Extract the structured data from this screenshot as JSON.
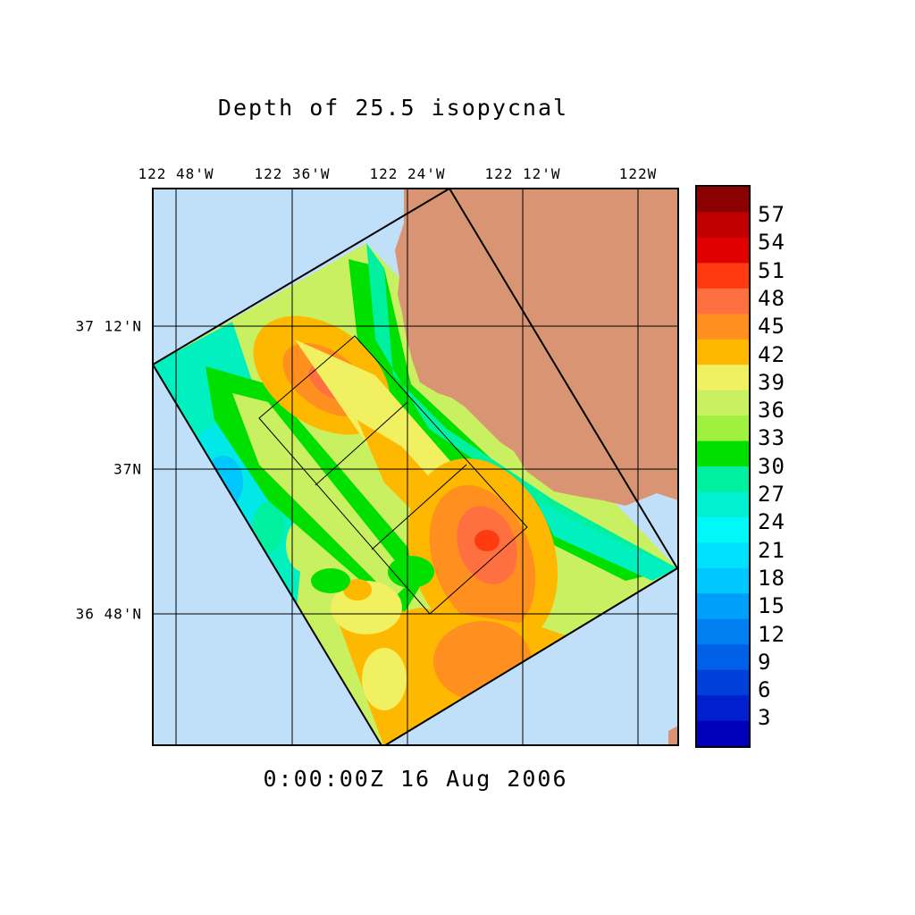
{
  "title": "Depth of 25.5 isopycnal",
  "timestamp": "0:00:00Z  16 Aug 2006",
  "map": {
    "lon_labels": [
      "122 48'W",
      "122 36'W",
      "122 24'W",
      "122 12'W",
      "122W"
    ],
    "lat_labels": [
      "37 12'N",
      "37N",
      "36 48'N"
    ],
    "ocean_color": "#c0e0fa",
    "land_color": "#d99474",
    "grid_color": "#000000"
  },
  "colorbar": {
    "tick_labels": [
      "57",
      "54",
      "51",
      "48",
      "45",
      "42",
      "39",
      "36",
      "33",
      "30",
      "27",
      "24",
      "21",
      "18",
      "15",
      "12",
      "9",
      "6",
      "3"
    ],
    "colors_top_to_bottom": [
      "#8b0000",
      "#c00000",
      "#e00000",
      "#ff3a10",
      "#ff7040",
      "#ff9020",
      "#ffb800",
      "#f0f060",
      "#c8f060",
      "#a0f040",
      "#00e000",
      "#00f0a0",
      "#00f0d0",
      "#00f8f8",
      "#00e0ff",
      "#00c8ff",
      "#00a0f8",
      "#0080f0",
      "#0060e8",
      "#0040d8",
      "#0020d0",
      "#0000b8"
    ]
  }
}
